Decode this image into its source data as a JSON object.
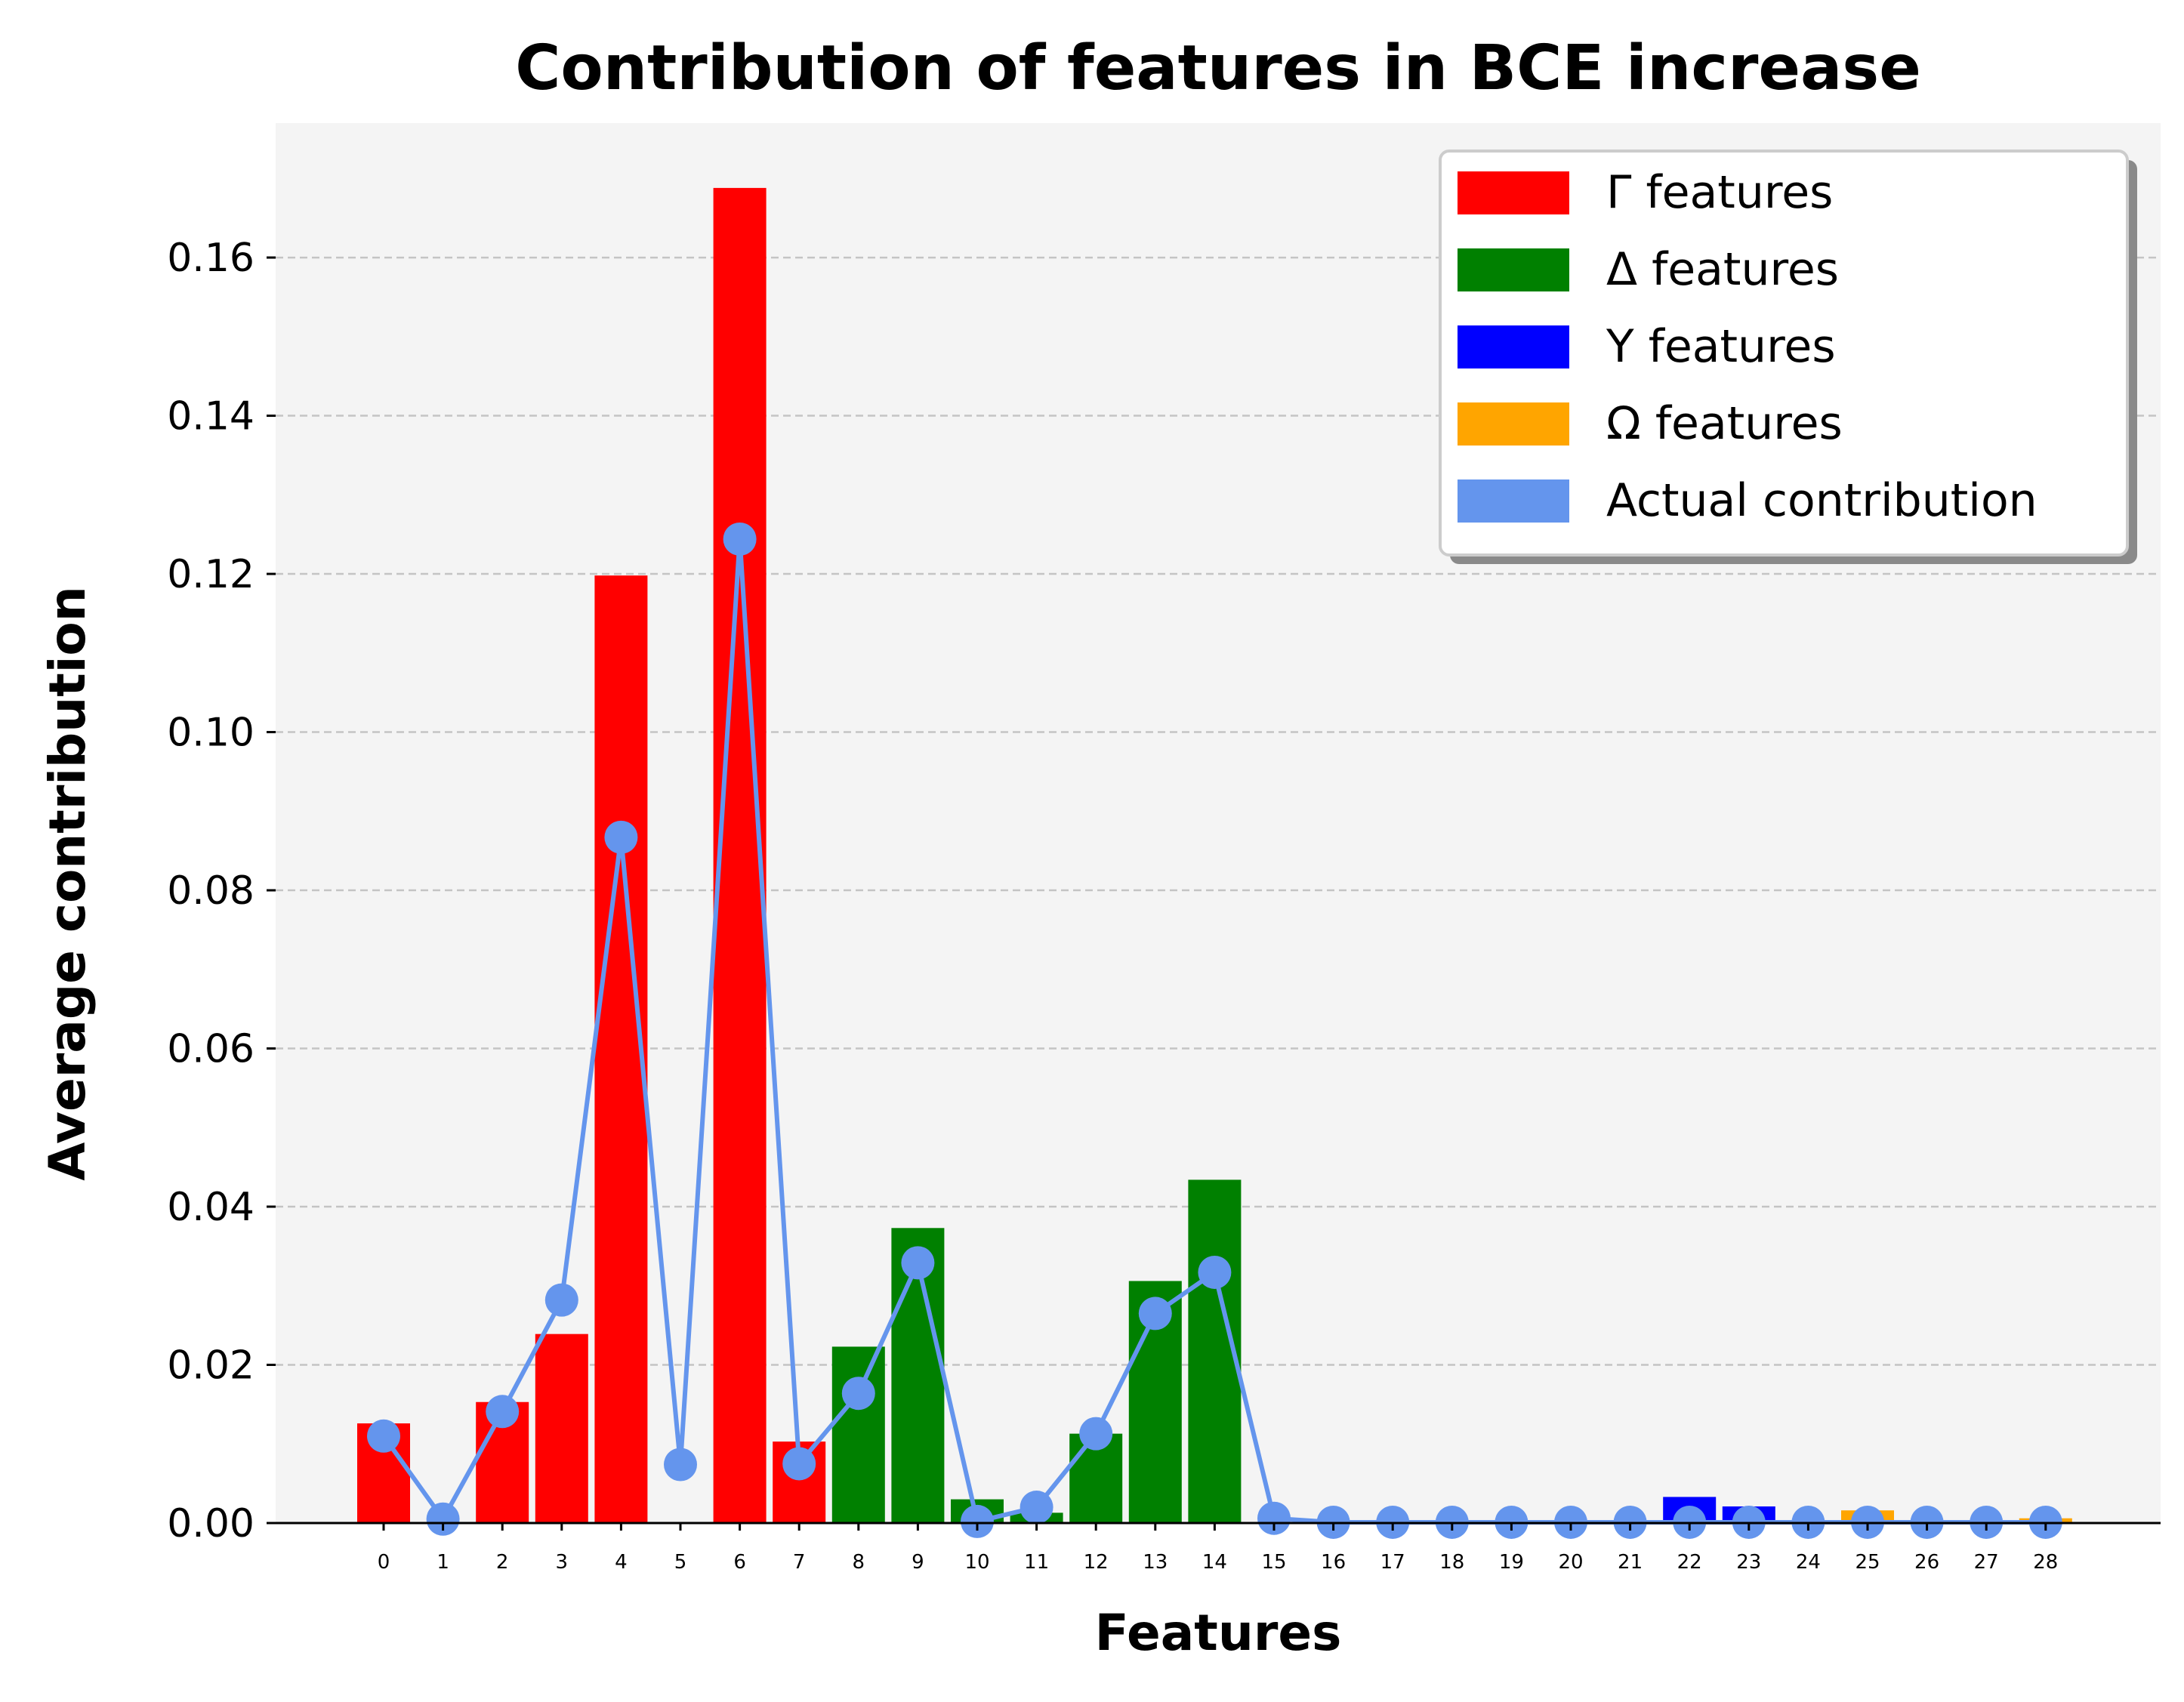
{
  "chart_data": {
    "type": "bar",
    "title": "Contribution of features in BCE increase",
    "xlabel": "Features",
    "ylabel": "Average contribution",
    "categories": [
      "0",
      "1",
      "2",
      "3",
      "4",
      "5",
      "6",
      "7",
      "8",
      "9",
      "10",
      "11",
      "12",
      "13",
      "14",
      "15",
      "16",
      "17",
      "18",
      "19",
      "20",
      "21",
      "22",
      "23",
      "24",
      "25",
      "26",
      "27",
      "28"
    ],
    "yticks": [
      "0.00",
      "0.02",
      "0.04",
      "0.06",
      "0.08",
      "0.10",
      "0.12",
      "0.14",
      "0.16"
    ],
    "ylim": [
      0,
      0.177
    ],
    "grid": "y-dashed",
    "legend_position": "top-right",
    "bar_values": [
      0.0126,
      0.0,
      0.0153,
      0.0239,
      0.1198,
      0.0,
      0.1688,
      0.0103,
      0.0223,
      0.0373,
      0.003,
      0.0013,
      0.0113,
      0.0306,
      0.0434,
      0.0,
      0.0,
      0.0,
      0.0,
      0.0,
      0.0,
      0.0,
      0.0033,
      0.0021,
      0.0,
      0.0016,
      0.0,
      0.0,
      0.0006
    ],
    "bar_groups": [
      "gamma",
      "gamma",
      "gamma",
      "gamma",
      "gamma",
      "gamma",
      "gamma",
      "gamma",
      "delta",
      "delta",
      "delta",
      "delta",
      "delta",
      "delta",
      "delta",
      "upsilon",
      "upsilon",
      "upsilon",
      "upsilon",
      "upsilon",
      "upsilon",
      "upsilon",
      "upsilon",
      "upsilon",
      "omega",
      "omega",
      "omega",
      "omega",
      "omega"
    ],
    "line_series": {
      "name": "Actual contribution",
      "values": [
        0.011,
        0.0005,
        0.0141,
        0.0282,
        0.0867,
        0.0074,
        0.1244,
        0.0075,
        0.0164,
        0.0329,
        0.0002,
        0.002,
        0.0113,
        0.0265,
        0.0317,
        0.0006,
        0.0001,
        0.0001,
        0.0001,
        0.0001,
        0.0001,
        0.0001,
        0.0001,
        0.0001,
        0.0001,
        0.0001,
        0.0001,
        0.0001,
        0.0001
      ]
    },
    "legend": [
      {
        "key": "gamma",
        "label": "Γ features",
        "color": "#ff0000"
      },
      {
        "key": "delta",
        "label": "Δ features",
        "color": "#008000"
      },
      {
        "key": "upsilon",
        "label": "Υ features",
        "color": "#0000ff"
      },
      {
        "key": "omega",
        "label": "Ω features",
        "color": "#ffa500"
      },
      {
        "key": "actual",
        "label": "Actual contribution",
        "color": "#6495ed"
      }
    ],
    "colors": {
      "gamma": "#ff0000",
      "delta": "#008000",
      "upsilon": "#0000ff",
      "omega": "#ffa500",
      "actual": "#6495ed",
      "plot_background": "#f4f4f4",
      "grid": "#c4c4c4"
    }
  }
}
